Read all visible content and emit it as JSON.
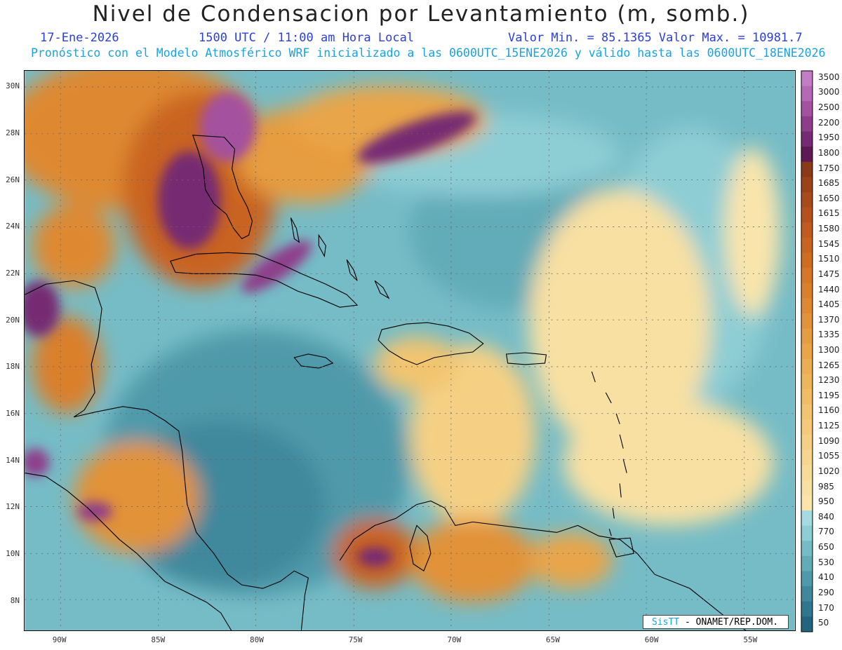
{
  "header": {
    "title": "Nivel de Condensacion por Levantamiento (m, somb.)",
    "date": "17-Ene-2026",
    "time": "1500 UTC / 11:00 am Hora Local",
    "min_max": "Valor Min. = 85.1365  Valor Max. = 10981.7",
    "forecast": "Pronóstico con el Modelo Atmosférico WRF inicializado a las 0600UTC_15ENE2026 y válido hasta las  0600UTC_18ENE2026"
  },
  "axes": {
    "lat_labels": [
      "30N",
      "28N",
      "26N",
      "24N",
      "22N",
      "20N",
      "18N",
      "16N",
      "14N",
      "12N",
      "10N",
      "8N"
    ],
    "lat_values": [
      30,
      28,
      26,
      24,
      22,
      20,
      18,
      16,
      14,
      12,
      10,
      8
    ],
    "lon_labels": [
      "90W",
      "85W",
      "80W",
      "75W",
      "70W",
      "65W",
      "60W",
      "55W"
    ],
    "lon_values": [
      -90,
      -85,
      -80,
      -75,
      -70,
      -65,
      -60,
      -55
    ],
    "lat_range": [
      6.7,
      30.7
    ],
    "lon_range": [
      -91.8,
      -52.7
    ]
  },
  "legend": {
    "labels": [
      "3500",
      "3000",
      "2500",
      "2200",
      "1950",
      "1800",
      "1750",
      "1685",
      "1650",
      "1615",
      "1580",
      "1545",
      "1510",
      "1475",
      "1440",
      "1405",
      "1370",
      "1335",
      "1300",
      "1265",
      "1230",
      "1195",
      "1160",
      "1125",
      "1090",
      "1055",
      "1020",
      "985",
      "950",
      "840",
      "770",
      "650",
      "530",
      "410",
      "290",
      "170",
      "50"
    ],
    "colors": [
      "#c37ec3",
      "#b569b5",
      "#a4519f",
      "#8f3d8a",
      "#762a72",
      "#5d1a55",
      "#8a3a18",
      "#9b4218",
      "#a94a1a",
      "#b5521c",
      "#c05a1e",
      "#c96320",
      "#d06c22",
      "#d67626",
      "#da7f2c",
      "#de8932",
      "#e29238",
      "#e69c40",
      "#e9a548",
      "#ecae52",
      "#eeb65c",
      "#f0bd66",
      "#f2c470",
      "#f4ca7a",
      "#f5d084",
      "#f6d68e",
      "#f7db98",
      "#f8e0a2",
      "#f9e5ac",
      "#a5dbe0",
      "#8dcdd4",
      "#76bcc6",
      "#62abb8",
      "#4f9aaa",
      "#3f889c",
      "#30778d",
      "#24657e"
    ]
  },
  "credit": {
    "brand": "SisTT",
    "text": "- ONAMET/REP.DOM."
  },
  "colors": {
    "title": "#222222",
    "date_line": "#2b3fd9",
    "forecast_line": "#1aa3e0"
  }
}
